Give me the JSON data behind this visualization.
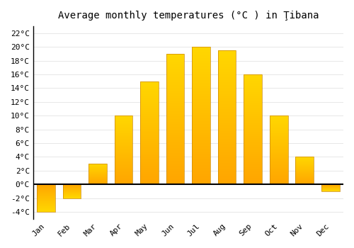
{
  "title": "Average monthly temperatures (°C ) in Ţibana",
  "months": [
    "Jan",
    "Feb",
    "Mar",
    "Apr",
    "May",
    "Jun",
    "Jul",
    "Aug",
    "Sep",
    "Oct",
    "Nov",
    "Dec"
  ],
  "values": [
    -4,
    -2,
    3,
    10,
    15,
    19,
    20,
    19.5,
    16,
    10,
    4,
    -1
  ],
  "bar_color_bottom": "#FFA500",
  "bar_color_top": "#FFD700",
  "bar_edge_color": "#CC8800",
  "background_color": "#FFFFFF",
  "grid_color": "#DDDDDD",
  "ylim": [
    -5,
    23
  ],
  "yticks": [
    -4,
    -2,
    0,
    2,
    4,
    6,
    8,
    10,
    12,
    14,
    16,
    18,
    20,
    22
  ],
  "title_fontsize": 10,
  "tick_fontsize": 8,
  "font_family": "monospace"
}
